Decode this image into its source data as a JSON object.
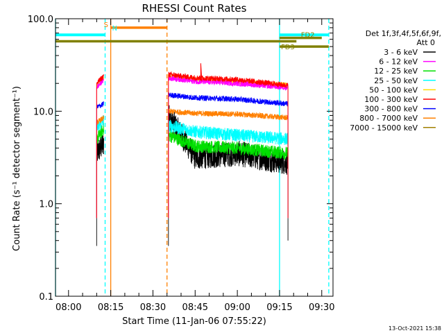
{
  "chart_data": {
    "type": "line",
    "title": "RHESSI Count Rates",
    "xlabel": "Start Time (11-Jan-06 07:55:22)",
    "ylabel": "Count Rate (s⁻¹ detector segment⁻¹)",
    "y_scale": "log",
    "ylim": [
      0.1,
      100.0
    ],
    "xlim": [
      "07:55:22",
      "09:34:00"
    ],
    "x_ticks": [
      "08:00",
      "08:15",
      "08:30",
      "08:45",
      "09:00",
      "09:15",
      "09:30"
    ],
    "y_ticks": [
      "0.1",
      "1.0",
      "10.0",
      "100.0"
    ],
    "legend_header": [
      "Det 1f,3f,4f,5f,6f,9f,",
      "Att 0"
    ],
    "legend_position": "right",
    "footer_timestamp": "13-Oct-2021 15:38",
    "series": [
      {
        "name": "3 - 6 keV",
        "color": "#000000",
        "values": [
          {
            "x": "08:10:00",
            "y": 3.5
          },
          {
            "x": "08:12:30",
            "y": 4.5
          },
          {
            "x": "08:35:30",
            "y": 9.0
          },
          {
            "x": "08:45:00",
            "y": 3.2
          },
          {
            "x": "09:00:00",
            "y": 3.5
          },
          {
            "x": "09:18:00",
            "y": 2.8
          }
        ]
      },
      {
        "name": "6 - 12 keV",
        "color": "#ff00ff",
        "values": [
          {
            "x": "08:10:00",
            "y": 18
          },
          {
            "x": "08:12:30",
            "y": 22
          },
          {
            "x": "08:35:30",
            "y": 23
          },
          {
            "x": "08:45:00",
            "y": 21
          },
          {
            "x": "09:00:00",
            "y": 20
          },
          {
            "x": "09:18:00",
            "y": 18
          }
        ]
      },
      {
        "name": "12 - 25 keV",
        "color": "#00e000",
        "values": [
          {
            "x": "08:10:00",
            "y": 5.0
          },
          {
            "x": "08:12:30",
            "y": 6.5
          },
          {
            "x": "08:35:30",
            "y": 5.5
          },
          {
            "x": "08:45:00",
            "y": 4.2
          },
          {
            "x": "09:00:00",
            "y": 4.0
          },
          {
            "x": "09:18:00",
            "y": 3.5
          }
        ]
      },
      {
        "name": "25 - 50 keV",
        "color": "#00ffff",
        "values": [
          {
            "x": "08:10:00",
            "y": 6.5
          },
          {
            "x": "08:12:30",
            "y": 8.0
          },
          {
            "x": "08:35:30",
            "y": 7.0
          },
          {
            "x": "08:45:00",
            "y": 6.0
          },
          {
            "x": "09:00:00",
            "y": 5.5
          },
          {
            "x": "09:18:00",
            "y": 5.0
          }
        ]
      },
      {
        "name": "50 - 100 keV",
        "color": "#ffdd00",
        "values": [
          {
            "x": "08:10:00",
            "y": 19
          },
          {
            "x": "08:12:30",
            "y": 23
          },
          {
            "x": "08:35:30",
            "y": 24
          },
          {
            "x": "08:45:00",
            "y": 22
          },
          {
            "x": "09:00:00",
            "y": 21
          },
          {
            "x": "09:18:00",
            "y": 19
          }
        ]
      },
      {
        "name": "100 - 300 keV",
        "color": "#ff0000",
        "values": [
          {
            "x": "08:10:00",
            "y": 20
          },
          {
            "x": "08:12:30",
            "y": 24
          },
          {
            "x": "08:35:30",
            "y": 25
          },
          {
            "x": "08:45:00",
            "y": 23
          },
          {
            "x": "09:00:00",
            "y": 22
          },
          {
            "x": "09:18:00",
            "y": 19
          }
        ]
      },
      {
        "name": "300 - 800 keV",
        "color": "#0000ff",
        "values": [
          {
            "x": "08:10:00",
            "y": 11
          },
          {
            "x": "08:12:30",
            "y": 12
          },
          {
            "x": "08:35:30",
            "y": 15
          },
          {
            "x": "08:45:00",
            "y": 14
          },
          {
            "x": "09:00:00",
            "y": 13.5
          },
          {
            "x": "09:18:00",
            "y": 12
          }
        ]
      },
      {
        "name": "800 - 7000 keV",
        "color": "#ff8000",
        "values": [
          {
            "x": "08:10:00",
            "y": 7.5
          },
          {
            "x": "08:12:30",
            "y": 8.5
          },
          {
            "x": "08:35:30",
            "y": 10
          },
          {
            "x": "08:45:00",
            "y": 9.5
          },
          {
            "x": "09:00:00",
            "y": 9.3
          },
          {
            "x": "09:18:00",
            "y": 8.5
          }
        ]
      },
      {
        "name": "7000 - 15000 keV",
        "color": "#a08000",
        "values": []
      }
    ],
    "annotations": [
      {
        "label": "S",
        "color": "#ff8000",
        "type": "bar",
        "x_start": "08:15:00",
        "x_end": "08:35:00",
        "y": 80
      },
      {
        "label": "N",
        "color": "#00ffff",
        "type": "mark",
        "x": "08:15:00",
        "y": 67
      },
      {
        "label": "FD2",
        "color": "#808000",
        "type": "bar",
        "x_start": "09:15:00",
        "x_end": "09:30:00",
        "y": 62
      },
      {
        "label": "FD3",
        "color": "#808000",
        "type": "bar",
        "x_start": "09:15:00",
        "x_end": "09:32:30",
        "y": 50
      }
    ],
    "cyan_bars": [
      {
        "x_start": "07:55:22",
        "x_end": "08:13:00",
        "y": 67
      },
      {
        "x_start": "09:15:00",
        "x_end": "09:32:30",
        "y": 67
      }
    ],
    "olive_line": {
      "x_start": "07:55:22",
      "x_end": "09:21:00",
      "y": 57
    },
    "vlines": [
      {
        "x": "07:55:22",
        "color": "#00ffff",
        "style": "solid"
      },
      {
        "x": "08:13:00",
        "color": "#00ffff",
        "style": "dashed"
      },
      {
        "x": "08:15:00",
        "color": "#ff8000",
        "style": "solid"
      },
      {
        "x": "08:35:00",
        "color": "#ff8000",
        "style": "dashed"
      },
      {
        "x": "09:15:00",
        "color": "#00ffff",
        "style": "solid"
      },
      {
        "x": "09:32:30",
        "color": "#00ffff",
        "style": "dashed"
      }
    ]
  }
}
